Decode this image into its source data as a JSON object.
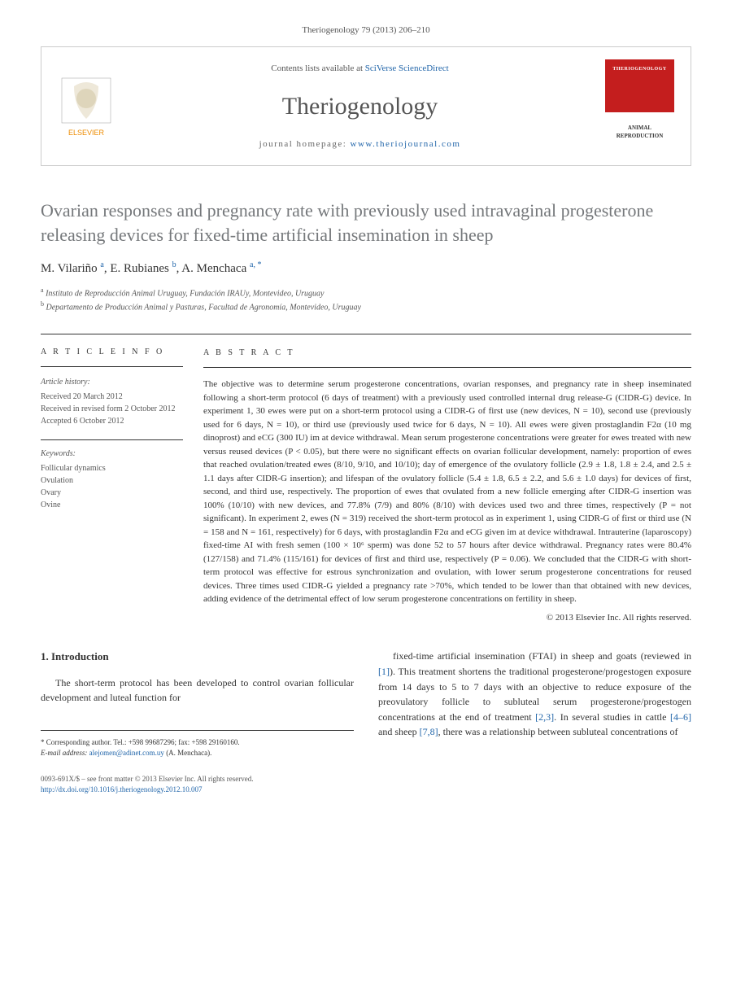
{
  "citation": "Theriogenology 79 (2013) 206–210",
  "header": {
    "contents_prefix": "Contents lists available at ",
    "contents_link": "SciVerse ScienceDirect",
    "journal_name": "Theriogenology",
    "homepage_prefix": "journal homepage: ",
    "homepage_link": "www.theriojournal.com",
    "cover_title": "THERIOGENOLOGY",
    "cover_sub": "ANIMAL REPRODUCTION"
  },
  "title": "Ovarian responses and pregnancy rate with previously used intravaginal progesterone releasing devices for fixed-time artificial insemination in sheep",
  "authors_html": "M. Vilariño <sup>a</sup>, E. Rubianes <sup>b</sup>, A. Menchaca <sup>a, *</sup>",
  "affiliations": [
    {
      "sup": "a",
      "text": "Instituto de Reproducción Animal Uruguay, Fundación IRAUy, Montevideo, Uruguay"
    },
    {
      "sup": "b",
      "text": "Departamento de Producción Animal y Pasturas, Facultad de Agronomía, Montevideo, Uruguay"
    }
  ],
  "info": {
    "heading": "A R T I C L E   I N F O",
    "history_heading": "Article history:",
    "history": [
      "Received 20 March 2012",
      "Received in revised form 2 October 2012",
      "Accepted 6 October 2012"
    ],
    "keywords_heading": "Keywords:",
    "keywords": [
      "Follicular dynamics",
      "Ovulation",
      "Ovary",
      "Ovine"
    ]
  },
  "abstract": {
    "heading": "A B S T R A C T",
    "text": "The objective was to determine serum progesterone concentrations, ovarian responses, and pregnancy rate in sheep inseminated following a short-term protocol (6 days of treatment) with a previously used controlled internal drug release-G (CIDR-G) device. In experiment 1, 30 ewes were put on a short-term protocol using a CIDR-G of first use (new devices, N = 10), second use (previously used for 6 days, N = 10), or third use (previously used twice for 6 days, N = 10). All ewes were given prostaglandin F2α (10 mg dinoprost) and eCG (300 IU) im at device withdrawal. Mean serum progesterone concentrations were greater for ewes treated with new versus reused devices (P < 0.05), but there were no significant effects on ovarian follicular development, namely: proportion of ewes that reached ovulation/treated ewes (8/10, 9/10, and 10/10); day of emergence of the ovulatory follicle (2.9 ± 1.8, 1.8 ± 2.4, and 2.5 ± 1.1 days after CIDR-G insertion); and lifespan of the ovulatory follicle (5.4 ± 1.8, 6.5 ± 2.2, and 5.6 ± 1.0 days) for devices of first, second, and third use, respectively. The proportion of ewes that ovulated from a new follicle emerging after CIDR-G insertion was 100% (10/10) with new devices, and 77.8% (7/9) and 80% (8/10) with devices used two and three times, respectively (P = not significant). In experiment 2, ewes (N = 319) received the short-term protocol as in experiment 1, using CIDR-G of first or third use (N = 158 and N = 161, respectively) for 6 days, with prostaglandin F2α and eCG given im at device withdrawal. Intrauterine (laparoscopy) fixed-time AI with fresh semen (100 × 10⁶ sperm) was done 52 to 57 hours after device withdrawal. Pregnancy rates were 80.4% (127/158) and 71.4% (115/161) for devices of first and third use, respectively (P = 0.06). We concluded that the CIDR-G with short-term protocol was effective for estrous synchronization and ovulation, with lower serum progesterone concentrations for reused devices. Three times used CIDR-G yielded a pregnancy rate >70%, which tended to be lower than that obtained with new devices, adding evidence of the detrimental effect of low serum progesterone concentrations on fertility in sheep.",
    "copyright": "© 2013 Elsevier Inc. All rights reserved."
  },
  "body": {
    "section_heading": "1. Introduction",
    "left_para": "The short-term protocol has been developed to control ovarian follicular development and luteal function for",
    "right_para_prefix": "fixed-time artificial insemination (FTAI) in sheep and goats (reviewed in ",
    "ref1": "[1]",
    "right_para_mid": "). This treatment shortens the traditional progesterone/progestogen exposure from 14 days to 5 to 7 days with an objective to reduce exposure of the preovulatory follicle to subluteal serum progesterone/progestogen concentrations at the end of treatment ",
    "ref23": "[2,3]",
    "right_para_mid2": ". In several studies in cattle ",
    "ref46": "[4–6]",
    "right_para_mid3": " and sheep ",
    "ref78": "[7,8]",
    "right_para_end": ", there was a relationship between subluteal concentrations of"
  },
  "corresponding": {
    "label": "* Corresponding author. Tel.: +598 99687296; fax: +598 29160160.",
    "email_label": "E-mail address: ",
    "email": "alejomen@adinet.com.uy",
    "email_suffix": " (A. Menchaca)."
  },
  "footer": {
    "line1": "0093-691X/$ – see front matter © 2013 Elsevier Inc. All rights reserved.",
    "doi": "http://dx.doi.org/10.1016/j.theriogenology.2012.10.007"
  },
  "colors": {
    "link": "#2266aa",
    "title_gray": "#75787b",
    "cover_red": "#c41e1e",
    "elsevier_orange": "#ed8b00"
  }
}
